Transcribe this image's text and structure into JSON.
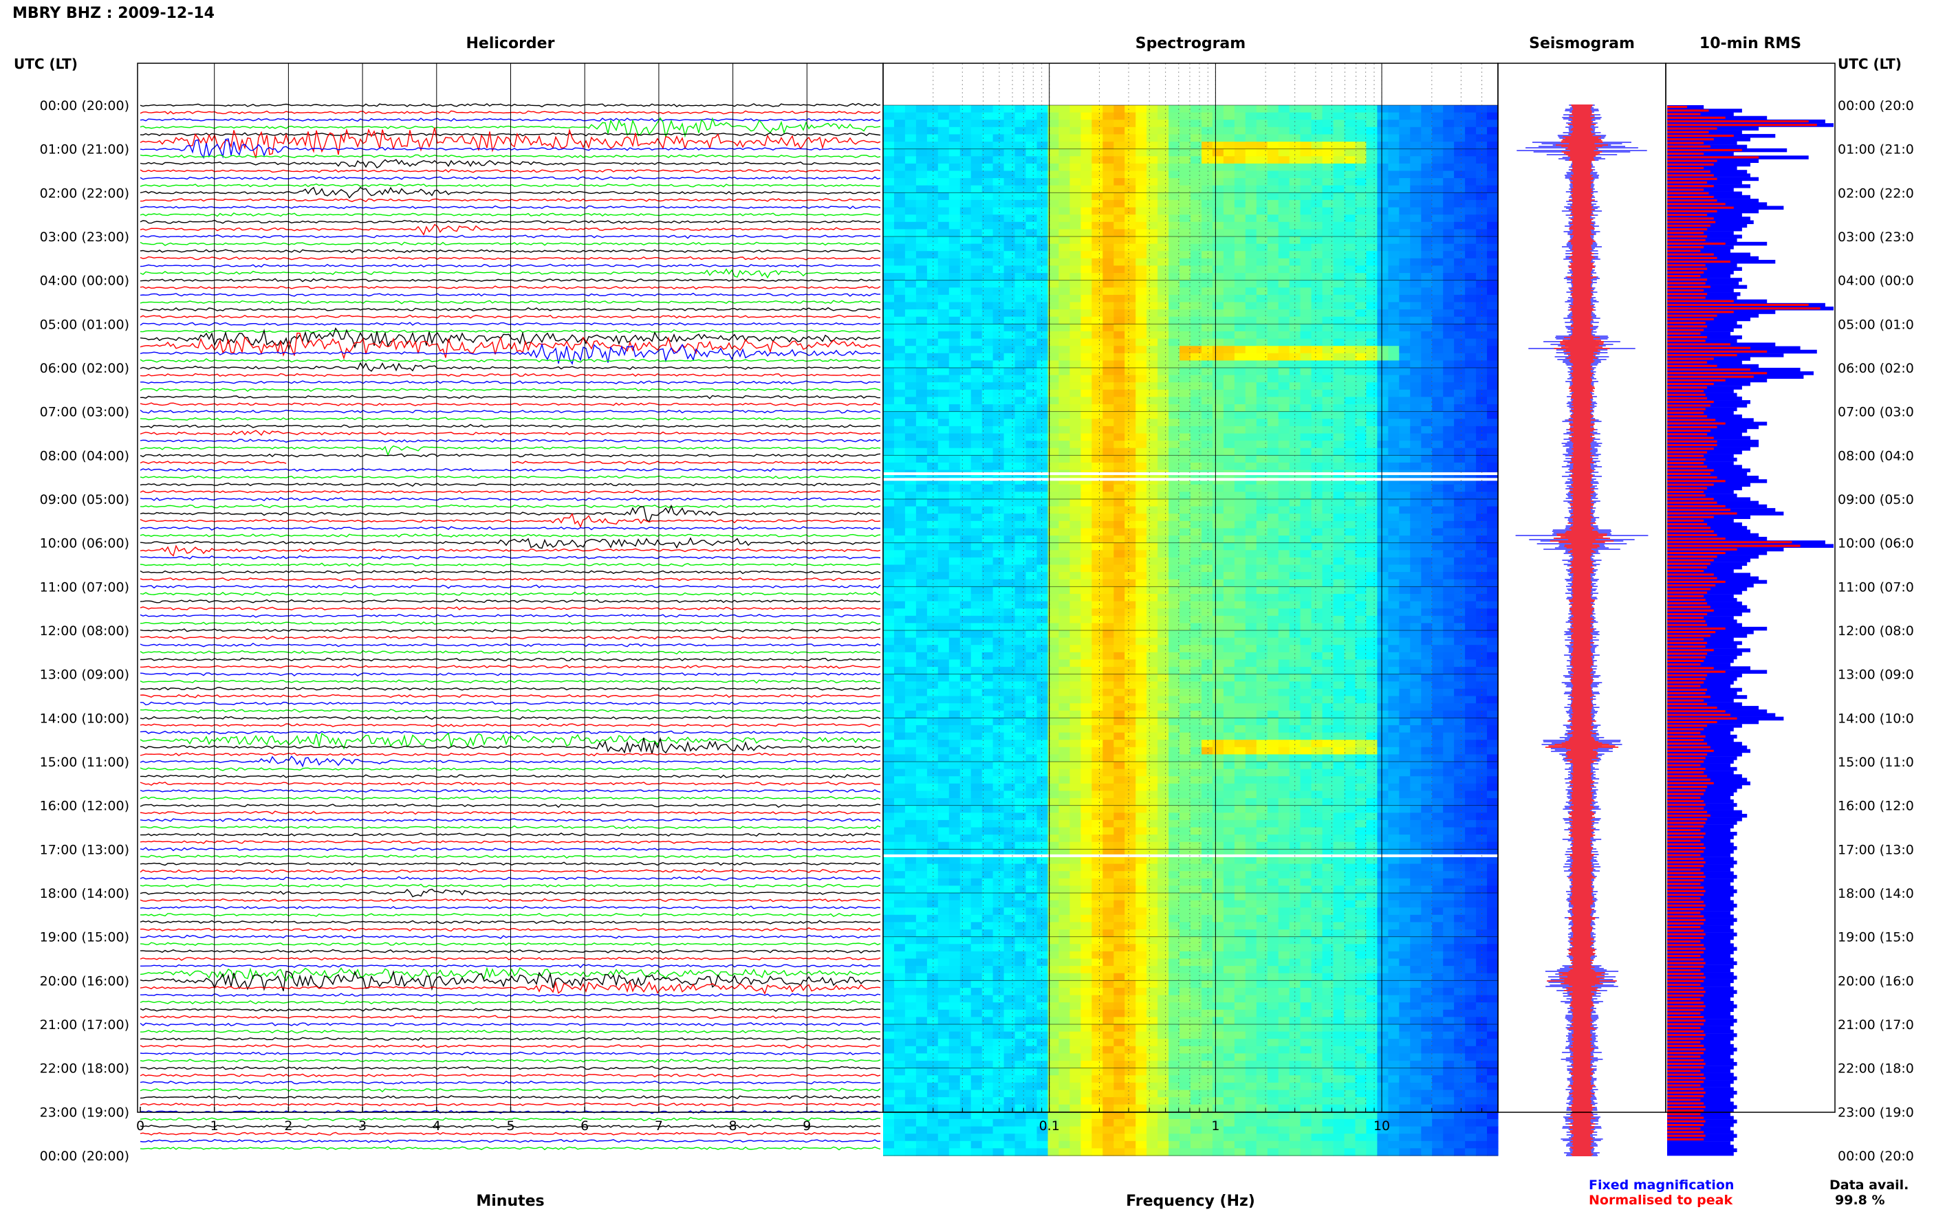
{
  "title": "MBRY BHZ : 2009-12-14",
  "utc_header": "UTC (LT)",
  "utc_header_right": "UTC (LT)",
  "panels": {
    "helicorder": "Helicorder",
    "spectrogram": "Spectrogram",
    "seismogram": "Seismogram",
    "rms": "10-min RMS"
  },
  "colors": {
    "trace_cycle": [
      "#000000",
      "#ff0000",
      "#0000ff",
      "#00ee00"
    ],
    "fixed": "#0000ff",
    "normalised": "#ff0000",
    "gap": "#ffffff"
  },
  "legend": {
    "fixed": "Fixed magnification",
    "normalised": "Normalised to peak",
    "data_avail_label": "Data avail.",
    "data_avail_value": "99.8 %"
  },
  "chart_data": [
    {
      "type": "line",
      "panel": "Helicorder",
      "xlabel": "Minutes",
      "ylabel": "UTC (LT)",
      "x_ticks": [
        "0",
        "1",
        "2",
        "3",
        "4",
        "5",
        "6",
        "7",
        "8",
        "9"
      ],
      "xlim": [
        0,
        10
      ],
      "time_labels_left": [
        "00:00 (20:00)",
        "01:00 (21:00)",
        "02:00 (22:00)",
        "03:00 (23:00)",
        "04:00 (00:00)",
        "05:00 (01:00)",
        "06:00 (02:00)",
        "07:00 (03:00)",
        "08:00 (04:00)",
        "09:00 (05:00)",
        "10:00 (06:00)",
        "11:00 (07:00)",
        "12:00 (08:00)",
        "13:00 (09:00)",
        "14:00 (10:00)",
        "15:00 (11:00)",
        "16:00 (12:00)",
        "17:00 (13:00)",
        "18:00 (14:00)",
        "19:00 (15:00)",
        "20:00 (16:00)",
        "21:00 (17:00)",
        "22:00 (18:00)",
        "23:00 (19:00)",
        "00:00 (20:00)"
      ],
      "lines_per_hour": 6,
      "minutes_per_line": 10,
      "events": [
        {
          "hour": 0.2,
          "start_min": 1.0,
          "end_min": 1.8,
          "amp": 1.6
        },
        {
          "hour": 0.5,
          "start_min": 5.9,
          "end_min": 9.8,
          "amp": 2.6
        },
        {
          "hour": 0.83,
          "start_min": 0.0,
          "end_min": 9.8,
          "amp": 3.2
        },
        {
          "hour": 1.0,
          "start_min": 0.5,
          "end_min": 2.0,
          "amp": 3.4
        },
        {
          "hour": 1.33,
          "start_min": 2.5,
          "end_min": 5.5,
          "amp": 1.2
        },
        {
          "hour": 2.0,
          "start_min": 2.0,
          "end_min": 4.2,
          "amp": 1.8
        },
        {
          "hour": 2.83,
          "start_min": 3.6,
          "end_min": 4.6,
          "amp": 1.6
        },
        {
          "hour": 3.83,
          "start_min": 7.5,
          "end_min": 9.0,
          "amp": 1.5
        },
        {
          "hour": 5.33,
          "start_min": 0.0,
          "end_min": 9.8,
          "amp": 2.2
        },
        {
          "hour": 5.5,
          "start_min": 0.0,
          "end_min": 9.8,
          "amp": 2.8
        },
        {
          "hour": 5.67,
          "start_min": 4.8,
          "end_min": 9.8,
          "amp": 2.2
        },
        {
          "hour": 6.0,
          "start_min": 2.8,
          "end_min": 4.0,
          "amp": 1.4
        },
        {
          "hour": 7.5,
          "start_min": 1.2,
          "end_min": 1.9,
          "amp": 1.3
        },
        {
          "hour": 7.83,
          "start_min": 3.2,
          "end_min": 4.0,
          "amp": 1.3
        },
        {
          "hour": 9.33,
          "start_min": 6.5,
          "end_min": 7.8,
          "amp": 2.0
        },
        {
          "hour": 9.5,
          "start_min": 5.5,
          "end_min": 6.8,
          "amp": 1.6
        },
        {
          "hour": 10.0,
          "start_min": 4.6,
          "end_min": 8.3,
          "amp": 1.8
        },
        {
          "hour": 10.17,
          "start_min": 0.0,
          "end_min": 1.4,
          "amp": 1.5
        },
        {
          "hour": 14.5,
          "start_min": 0.0,
          "end_min": 9.8,
          "amp": 1.7
        },
        {
          "hour": 14.67,
          "start_min": 6.0,
          "end_min": 8.5,
          "amp": 2.2
        },
        {
          "hour": 15.0,
          "start_min": 1.5,
          "end_min": 3.5,
          "amp": 1.5
        },
        {
          "hour": 18.0,
          "start_min": 3.5,
          "end_min": 4.6,
          "amp": 1.4
        },
        {
          "hour": 19.83,
          "start_min": 0.0,
          "end_min": 9.8,
          "amp": 1.6
        },
        {
          "hour": 20.0,
          "start_min": 0.0,
          "end_min": 9.8,
          "amp": 2.4
        },
        {
          "hour": 20.17,
          "start_min": 5.0,
          "end_min": 9.8,
          "amp": 1.8
        }
      ],
      "gaps": [
        {
          "hour": 8.17,
          "start_min": 2.0,
          "end_min": 5.0
        }
      ]
    },
    {
      "type": "heatmap",
      "panel": "Spectrogram",
      "xlabel": "Frequency (Hz)",
      "x_scale": "log",
      "x_ticks": [
        "0.1",
        "1",
        "10"
      ],
      "xlim": [
        0.01,
        50
      ],
      "gap_hours": [
        8.42,
        8.55,
        17.15
      ],
      "bright_bands": [
        {
          "hour": 1.0,
          "fmin": 0.8,
          "fmax": 8
        },
        {
          "hour": 5.55,
          "fmin": 0.6,
          "fmax": 12
        },
        {
          "hour": 14.6,
          "fmin": 0.8,
          "fmax": 10
        }
      ]
    },
    {
      "type": "line",
      "panel": "Seismogram",
      "series": [
        {
          "name": "Fixed magnification",
          "color": "#0000ff"
        },
        {
          "name": "Normalised to peak",
          "color": "#ff0000"
        }
      ],
      "peak_hours": [
        0.95,
        5.55,
        9.95,
        14.65,
        20.0
      ]
    },
    {
      "type": "bar",
      "panel": "10-min RMS",
      "time_labels_right": [
        "00:00 (20:0",
        "01:00 (21:0",
        "02:00 (22:0",
        "03:00 (23:0",
        "04:00 (00:0",
        "05:00 (01:0",
        "06:00 (02:0",
        "07:00 (03:0",
        "08:00 (04:0",
        "09:00 (05:0",
        "10:00 (06:0",
        "11:00 (07:0",
        "12:00 (08:0",
        "13:00 (09:0",
        "14:00 (10:0",
        "15:00 (11:0",
        "16:00 (12:0",
        "17:00 (13:0",
        "18:00 (14:0",
        "19:00 (15:0",
        "20:00 (16:0",
        "21:00 (17:0",
        "22:00 (18:0",
        "23:00 (19:0",
        "00:00 (20:0"
      ],
      "series": [
        {
          "name": "Fixed magnification",
          "color": "#0000ff",
          "values": [
            0.22,
            0.45,
            0.4,
            0.6,
            0.95,
            1.0,
            0.55,
            0.45,
            0.65,
            0.5,
            0.42,
            0.48,
            0.72,
            0.4,
            0.85,
            0.55,
            0.5,
            0.42,
            0.48,
            0.5,
            0.55,
            0.45,
            0.5,
            0.4,
            0.45,
            0.5,
            0.55,
            0.6,
            0.7,
            0.55,
            0.45,
            0.5,
            0.52,
            0.48,
            0.45,
            0.4,
            0.45,
            0.42,
            0.6,
            0.4,
            0.38,
            0.5,
            0.55,
            0.65,
            0.42,
            0.45,
            0.4,
            0.38,
            0.45,
            0.43,
            0.48,
            0.4,
            0.44,
            0.42,
            0.6,
            0.95,
            1.0,
            0.65,
            0.55,
            0.5,
            0.42,
            0.45,
            0.4,
            0.38,
            0.45,
            0.42,
            0.65,
            0.8,
            0.9,
            0.7,
            0.5,
            0.45,
            0.55,
            0.8,
            0.88,
            0.82,
            0.6,
            0.5,
            0.45,
            0.4,
            0.42,
            0.45,
            0.5,
            0.48,
            0.42,
            0.4,
            0.45,
            0.52,
            0.6,
            0.55,
            0.48,
            0.45,
            0.5,
            0.55,
            0.55,
            0.5,
            0.45,
            0.4,
            0.42,
            0.4,
            0.45,
            0.5,
            0.48,
            0.55,
            0.6,
            0.5,
            0.45,
            0.4,
            0.42,
            0.5,
            0.55,
            0.6,
            0.65,
            0.7,
            0.5,
            0.4,
            0.45,
            0.48,
            0.5,
            0.55,
            0.6,
            0.95,
            1.0,
            0.7,
            0.6,
            0.55,
            0.5,
            0.48,
            0.45,
            0.4,
            0.5,
            0.55,
            0.6,
            0.52,
            0.48,
            0.45,
            0.4,
            0.42,
            0.45,
            0.48,
            0.5,
            0.45,
            0.4,
            0.42,
            0.45,
            0.6,
            0.52,
            0.48,
            0.4,
            0.45,
            0.42,
            0.5,
            0.45,
            0.42,
            0.4,
            0.38,
            0.5,
            0.6,
            0.45,
            0.42,
            0.4,
            0.38,
            0.45,
            0.42,
            0.48,
            0.4,
            0.45,
            0.55,
            0.6,
            0.65,
            0.7,
            0.55,
            0.45,
            0.4,
            0.38,
            0.42,
            0.4,
            0.45,
            0.48,
            0.5,
            0.45,
            0.42,
            0.4,
            0.38,
            0.42,
            0.4,
            0.45,
            0.48,
            0.5,
            0.45,
            0.42,
            0.4,
            0.38,
            0.4,
            0.42,
            0.4,
            0.45,
            0.48,
            0.45,
            0.42,
            0.4,
            0.38,
            0.42,
            0.4,
            0.38,
            0.4,
            0.42,
            0.4,
            0.38,
            0.4,
            0.42,
            0.4,
            0.38,
            0.4,
            0.42,
            0.4,
            0.38,
            0.4,
            0.42,
            0.4,
            0.38,
            0.4,
            0.42,
            0.4,
            0.38,
            0.4,
            0.42,
            0.4,
            0.38,
            0.4,
            0.42,
            0.4,
            0.38,
            0.4,
            0.42,
            0.4,
            0.38,
            0.4,
            0.42,
            0.4,
            0.38,
            0.4,
            0.42,
            0.4,
            0.38,
            0.4,
            0.42,
            0.4,
            0.38,
            0.4,
            0.42,
            0.4,
            0.38,
            0.4,
            0.42,
            0.4,
            0.38,
            0.4,
            0.42,
            0.4,
            0.38,
            0.4,
            0.42,
            0.4,
            0.38,
            0.4,
            0.42,
            0.4,
            0.38,
            0.4,
            0.42,
            0.4,
            0.38,
            0.4,
            0.42,
            0.4,
            0.38,
            0.4,
            0.42,
            0.4,
            0.38,
            0.4,
            0.42,
            0.4,
            0.38,
            0.4,
            0.42,
            0.4,
            0.38,
            0.4,
            0.42,
            0.4
          ]
        },
        {
          "name": "Normalised to peak",
          "color": "#ff0000",
          "values": [
            0.12,
            0.25,
            0.2,
            0.35,
            0.85,
            0.9,
            0.3,
            0.25,
            0.4,
            0.28,
            0.22,
            0.26,
            0.45,
            0.22,
            0.55,
            0.3,
            0.28,
            0.22,
            0.26,
            0.28,
            0.3,
            0.24,
            0.28,
            0.22,
            0.25,
            0.28,
            0.3,
            0.35,
            0.4,
            0.3,
            0.24,
            0.28,
            0.29,
            0.26,
            0.24,
            0.22,
            0.24,
            0.23,
            0.35,
            0.22,
            0.2,
            0.28,
            0.3,
            0.38,
            0.23,
            0.24,
            0.22,
            0.2,
            0.24,
            0.23,
            0.26,
            0.22,
            0.24,
            0.23,
            0.4,
            0.85,
            0.92,
            0.4,
            0.3,
            0.28,
            0.23,
            0.24,
            0.22,
            0.2,
            0.24,
            0.23,
            0.38,
            0.5,
            0.6,
            0.42,
            0.28,
            0.24,
            0.3,
            0.5,
            0.6,
            0.52,
            0.35,
            0.28,
            0.24,
            0.22,
            0.23,
            0.24,
            0.28,
            0.26,
            0.23,
            0.22,
            0.24,
            0.29,
            0.35,
            0.3,
            0.26,
            0.24,
            0.28,
            0.3,
            0.3,
            0.28,
            0.24,
            0.22,
            0.23,
            0.22,
            0.24,
            0.28,
            0.26,
            0.3,
            0.35,
            0.28,
            0.24,
            0.22,
            0.23,
            0.28,
            0.3,
            0.35,
            0.38,
            0.42,
            0.28,
            0.22,
            0.24,
            0.26,
            0.28,
            0.3,
            0.35,
            0.75,
            0.8,
            0.42,
            0.35,
            0.3,
            0.28,
            0.26,
            0.24,
            0.22,
            0.28,
            0.3,
            0.35,
            0.29,
            0.26,
            0.24,
            0.22,
            0.23,
            0.24,
            0.26,
            0.28,
            0.24,
            0.22,
            0.23,
            0.24,
            0.35,
            0.29,
            0.26,
            0.22,
            0.24,
            0.23,
            0.28,
            0.24,
            0.23,
            0.22,
            0.2,
            0.28,
            0.35,
            0.24,
            0.23,
            0.22,
            0.2,
            0.24,
            0.23,
            0.26,
            0.22,
            0.24,
            0.3,
            0.35,
            0.38,
            0.42,
            0.3,
            0.24,
            0.22,
            0.2,
            0.23,
            0.22,
            0.24,
            0.26,
            0.28,
            0.24,
            0.23,
            0.22,
            0.2,
            0.23,
            0.22,
            0.24,
            0.26,
            0.28,
            0.24,
            0.23,
            0.22,
            0.2,
            0.22,
            0.23,
            0.22,
            0.24,
            0.26,
            0.24,
            0.23,
            0.22,
            0.2,
            0.23,
            0.22,
            0.2,
            0.22,
            0.23,
            0.22,
            0.2,
            0.22,
            0.23,
            0.22,
            0.2,
            0.22,
            0.23,
            0.22,
            0.2,
            0.22,
            0.23,
            0.22,
            0.2,
            0.22,
            0.23,
            0.22,
            0.2,
            0.22,
            0.23,
            0.22,
            0.2,
            0.22,
            0.23,
            0.22,
            0.2,
            0.22,
            0.23,
            0.22,
            0.2,
            0.22,
            0.23,
            0.22,
            0.2,
            0.22,
            0.23,
            0.22,
            0.2,
            0.22,
            0.23,
            0.22,
            0.2,
            0.22,
            0.23,
            0.22,
            0.2,
            0.22,
            0.23,
            0.22,
            0.2,
            0.22,
            0.23,
            0.22,
            0.2,
            0.22,
            0.23,
            0.22,
            0.2,
            0.22,
            0.23,
            0.22,
            0.2,
            0.22,
            0.23,
            0.22,
            0.2,
            0.22,
            0.23,
            0.22,
            0.2,
            0.22,
            0.23,
            0.22,
            0.2,
            0.22,
            0.23,
            0.22,
            0.2,
            0.22,
            0.23,
            0.22
          ]
        }
      ]
    }
  ]
}
